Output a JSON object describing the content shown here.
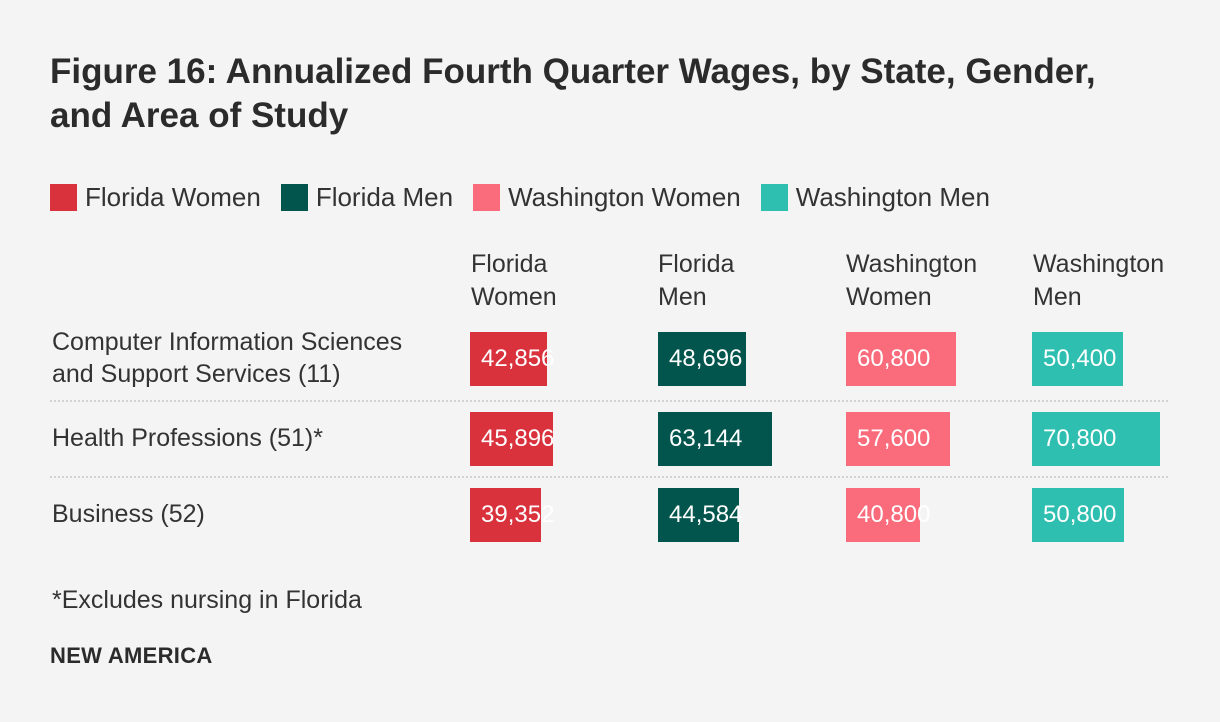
{
  "title": "Figure 16: Annualized Fourth Quarter Wages, by State, Gender, and Area of Study",
  "legend": [
    {
      "label": "Florida Women",
      "color": "#d9323c"
    },
    {
      "label": "Florida Men",
      "color": "#02554d"
    },
    {
      "label": "Washington Women",
      "color": "#fa6b7b"
    },
    {
      "label": "Washington Men",
      "color": "#2fbfb1"
    }
  ],
  "columns": [
    {
      "header": "Florida\nWomen"
    },
    {
      "header": "Florida\nMen"
    },
    {
      "header": "Washington\nWomen"
    },
    {
      "header": "Washington\nMen"
    }
  ],
  "chart_data": {
    "type": "bar",
    "title": "Figure 16: Annualized Fourth Quarter Wages, by State, Gender, and Area of Study",
    "categories": [
      "Computer Information Sciences\nand Support Services (11)",
      "Health Professions (51)*",
      "Business (52)"
    ],
    "series": [
      {
        "name": "Florida Women",
        "values": [
          42856,
          45896,
          39352
        ],
        "labels": [
          "42,856",
          "45,896",
          "39,352"
        ]
      },
      {
        "name": "Florida Men",
        "values": [
          48696,
          63144,
          44584
        ],
        "labels": [
          "48,696",
          "63,144",
          "44,584"
        ]
      },
      {
        "name": "Washington Women",
        "values": [
          60800,
          57600,
          40800
        ],
        "labels": [
          "60,800",
          "57,600",
          "40,800"
        ]
      },
      {
        "name": "Washington Men",
        "values": [
          50400,
          70800,
          50800
        ],
        "labels": [
          "50,400",
          "70,800",
          "50,800"
        ]
      }
    ],
    "xlim": [
      0,
      80000
    ]
  },
  "footnote": "*Excludes nursing in Florida",
  "brand": "NEW AMERICA"
}
